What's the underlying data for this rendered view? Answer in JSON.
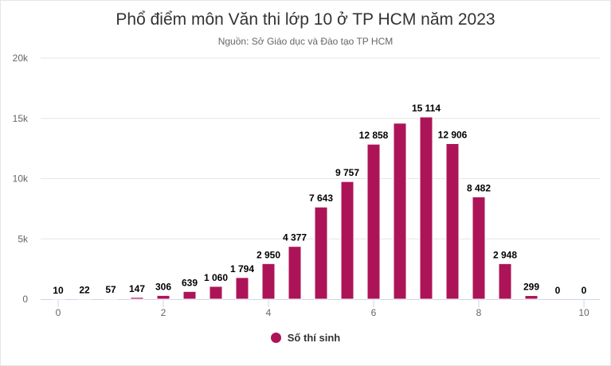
{
  "chart_data": {
    "type": "bar",
    "title": "Phổ điểm môn Văn thi lớp 10 ở TP HCM năm 2023",
    "subtitle": "Nguồn: Sở Giáo dục và Đào tạo TP HCM",
    "xlabel": "",
    "ylabel": "",
    "x": [
      0,
      0.5,
      1,
      1.5,
      2,
      2.5,
      3,
      3.5,
      4,
      4.5,
      5,
      5.5,
      6,
      6.5,
      7,
      7.5,
      8,
      8.5,
      9,
      9.5,
      10
    ],
    "values": [
      10,
      22,
      57,
      147,
      306,
      639,
      1060,
      1794,
      2950,
      4377,
      7643,
      9757,
      12858,
      14600,
      15114,
      12906,
      8482,
      2948,
      299,
      0,
      0
    ],
    "data_labels": [
      "10",
      "22",
      "57",
      "147",
      "306",
      "639",
      "1 060",
      "1 794",
      "2 950",
      "4 377",
      "7 643",
      "9 757",
      "12 858",
      "",
      "15 114",
      "12 906",
      "8 482",
      "2 948",
      "299",
      "0",
      "0"
    ],
    "xlim": [
      0,
      10
    ],
    "ylim": [
      0,
      20000
    ],
    "x_ticks": [
      "0",
      "2",
      "4",
      "6",
      "8",
      "10"
    ],
    "y_ticks": [
      "0",
      "5k",
      "10k",
      "15k",
      "20k"
    ],
    "legend": {
      "label": "Số thí sinh",
      "placement": "bottom"
    },
    "color": "#ad1457",
    "grid": true
  }
}
